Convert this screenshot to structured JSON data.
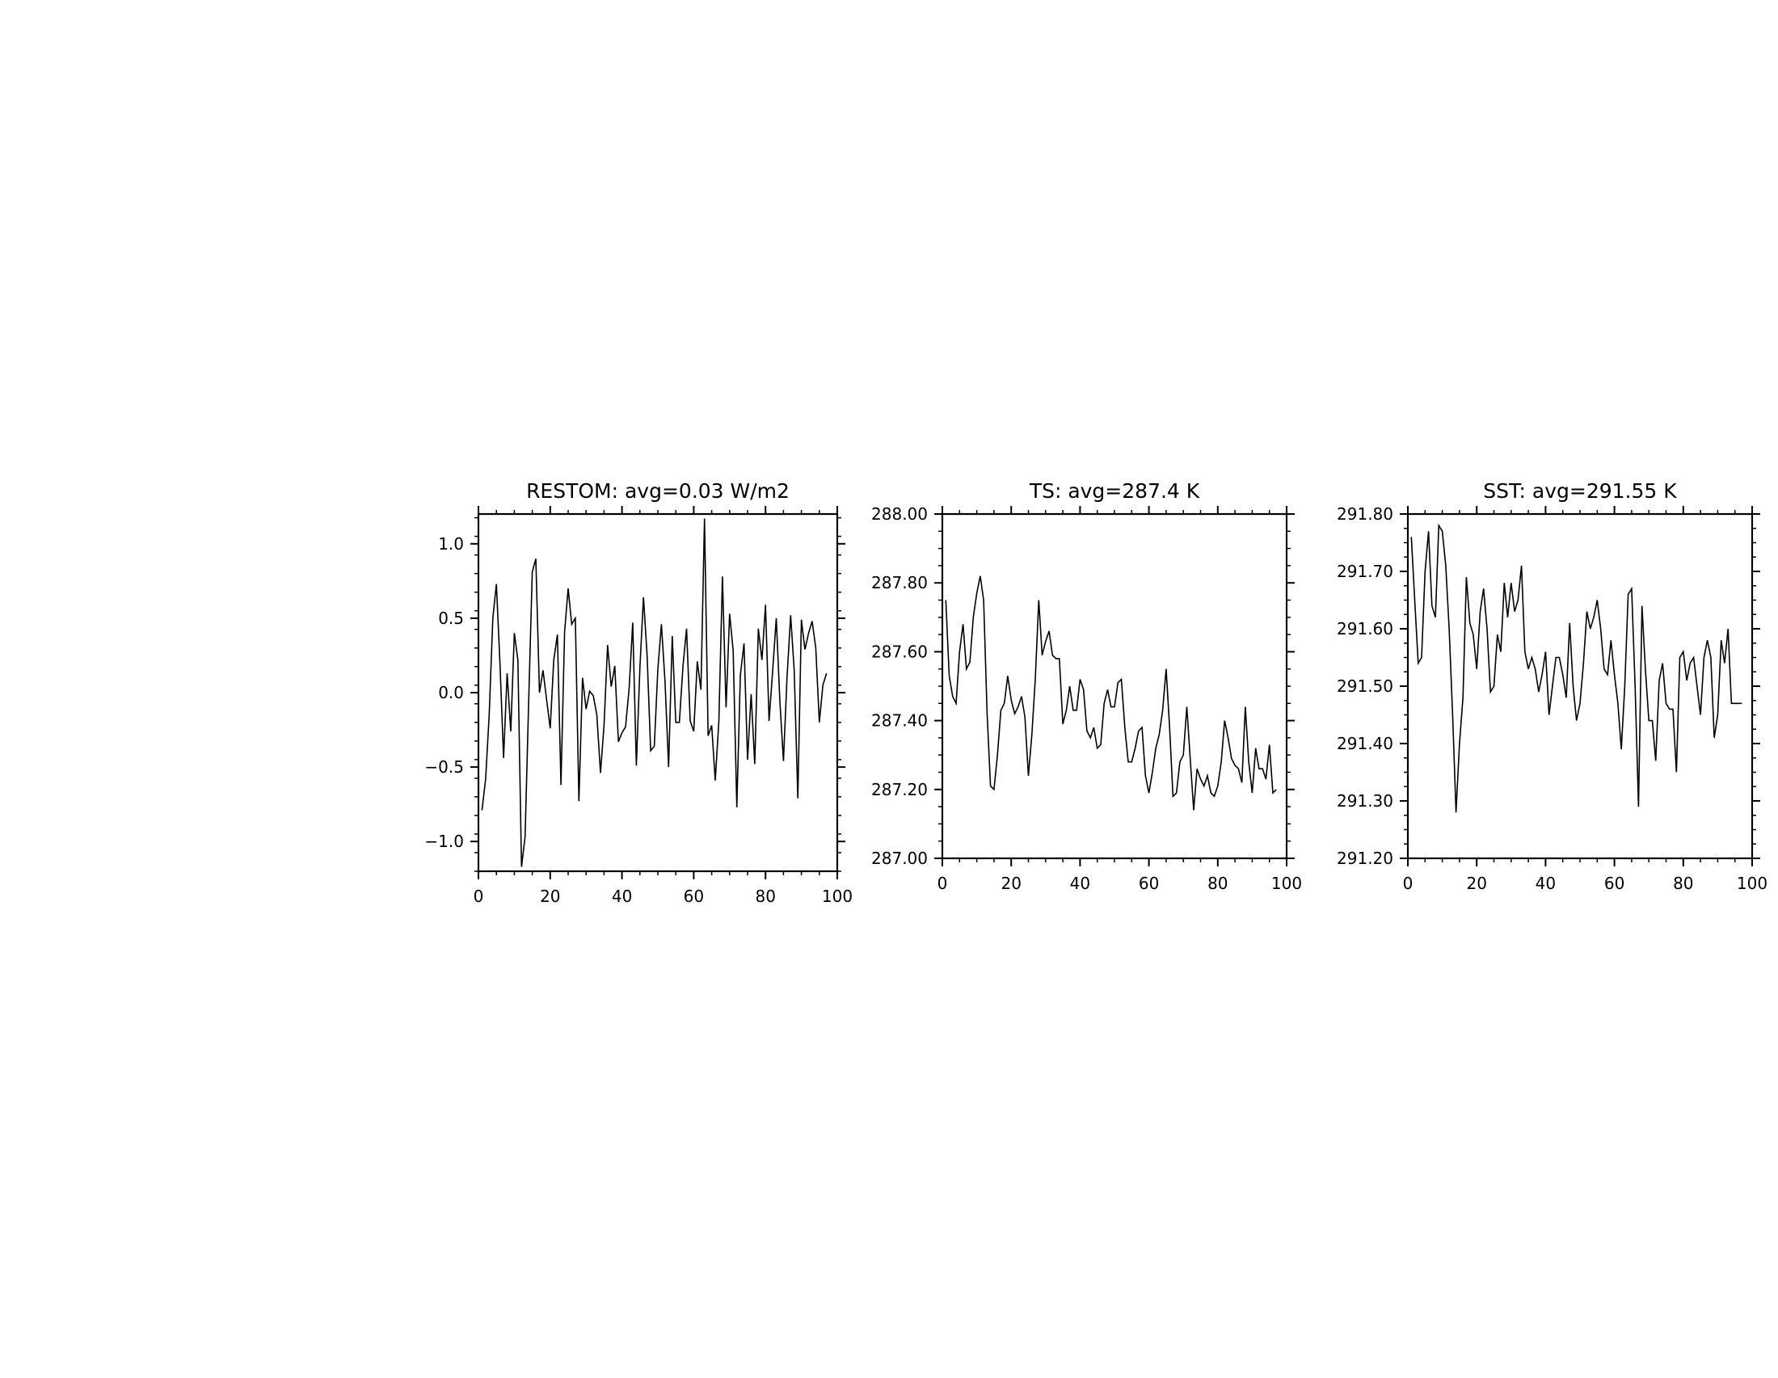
{
  "chart_data": [
    {
      "type": "line",
      "title": "RESTOM: avg=0.03 W/m2",
      "xlabel": "",
      "ylabel": "",
      "xlim": [
        0,
        100
      ],
      "ylim": [
        -1.2,
        1.2
      ],
      "xticks": [
        0,
        20,
        40,
        60,
        80,
        100
      ],
      "xtick_labels": [
        "0",
        "20",
        "40",
        "60",
        "80",
        "100"
      ],
      "yticks": [
        -1.0,
        -0.5,
        0.0,
        0.5,
        1.0
      ],
      "ytick_labels": [
        "−1.0",
        "−0.5",
        "0.0",
        "0.5",
        "1.0"
      ],
      "grid": false,
      "series": [
        {
          "x": [
            1,
            2,
            3,
            4,
            5,
            6,
            7,
            8,
            9,
            10,
            11,
            12,
            13,
            14,
            15,
            16,
            17,
            18,
            19,
            20,
            21,
            22,
            23,
            24,
            25,
            26,
            27,
            28,
            29,
            30,
            31,
            32,
            33,
            34,
            35,
            36,
            37,
            38,
            39,
            40,
            41,
            42,
            43,
            44,
            45,
            46,
            47,
            48,
            49,
            50,
            51,
            52,
            53,
            54,
            55,
            56,
            57,
            58,
            59,
            60,
            61,
            62,
            63,
            64,
            65,
            66,
            67,
            68,
            69,
            70,
            71,
            72,
            73,
            74,
            75,
            76,
            77,
            78,
            79,
            80,
            81,
            82,
            83,
            84,
            85,
            86,
            87,
            88,
            89,
            90,
            91,
            92,
            93,
            94,
            95,
            96,
            97
          ],
          "values": [
            -0.79,
            -0.58,
            -0.15,
            0.5,
            0.73,
            0.2,
            -0.44,
            0.13,
            -0.26,
            0.4,
            0.22,
            -1.17,
            -0.97,
            -0.05,
            0.81,
            0.9,
            0.0,
            0.15,
            -0.05,
            -0.24,
            0.22,
            0.39,
            -0.62,
            0.41,
            0.7,
            0.46,
            0.5,
            -0.73,
            0.1,
            -0.11,
            0.01,
            -0.02,
            -0.15,
            -0.54,
            -0.22,
            0.32,
            0.04,
            0.18,
            -0.33,
            -0.27,
            -0.23,
            0.03,
            0.47,
            -0.49,
            0.17,
            0.64,
            0.25,
            -0.39,
            -0.36,
            0.16,
            0.46,
            0.07,
            -0.5,
            0.38,
            -0.2,
            -0.2,
            0.18,
            0.43,
            -0.19,
            -0.26,
            0.21,
            0.02,
            1.17,
            -0.29,
            -0.22,
            -0.59,
            -0.19,
            0.78,
            -0.1,
            0.53,
            0.28,
            -0.77,
            0.12,
            0.33,
            -0.45,
            -0.01,
            -0.48,
            0.43,
            0.22,
            0.59,
            -0.19,
            0.15,
            0.5,
            -0.06,
            -0.46,
            0.1,
            0.52,
            0.15,
            -0.71,
            0.49,
            0.29,
            0.4,
            0.48,
            0.3,
            -0.2,
            0.05,
            0.13
          ]
        }
      ]
    },
    {
      "type": "line",
      "title": "TS: avg=287.4 K",
      "xlabel": "",
      "ylabel": "",
      "xlim": [
        0,
        100
      ],
      "ylim": [
        287.0,
        288.0
      ],
      "xticks": [
        0,
        20,
        40,
        60,
        80,
        100
      ],
      "xtick_labels": [
        "0",
        "20",
        "40",
        "60",
        "80",
        "100"
      ],
      "yticks": [
        287.0,
        287.2,
        287.4,
        287.6,
        287.8,
        288.0
      ],
      "ytick_labels": [
        "287.00",
        "287.20",
        "287.40",
        "287.60",
        "287.80",
        "288.00"
      ],
      "grid": false,
      "series": [
        {
          "x": [
            1,
            2,
            3,
            4,
            5,
            6,
            7,
            8,
            9,
            10,
            11,
            12,
            13,
            14,
            15,
            16,
            17,
            18,
            19,
            20,
            21,
            22,
            23,
            24,
            25,
            26,
            27,
            28,
            29,
            30,
            31,
            32,
            33,
            34,
            35,
            36,
            37,
            38,
            39,
            40,
            41,
            42,
            43,
            44,
            45,
            46,
            47,
            48,
            49,
            50,
            51,
            52,
            53,
            54,
            55,
            56,
            57,
            58,
            59,
            60,
            61,
            62,
            63,
            64,
            65,
            66,
            67,
            68,
            69,
            70,
            71,
            72,
            73,
            74,
            75,
            76,
            77,
            78,
            79,
            80,
            81,
            82,
            83,
            84,
            85,
            86,
            87,
            88,
            89,
            90,
            91,
            92,
            93,
            94,
            95,
            96,
            97
          ],
          "values": [
            287.75,
            287.53,
            287.47,
            287.45,
            287.6,
            287.68,
            287.55,
            287.57,
            287.7,
            287.77,
            287.82,
            287.75,
            287.42,
            287.21,
            287.2,
            287.3,
            287.43,
            287.45,
            287.53,
            287.46,
            287.42,
            287.44,
            287.47,
            287.41,
            287.24,
            287.36,
            287.52,
            287.75,
            287.59,
            287.63,
            287.66,
            287.59,
            287.58,
            287.58,
            287.39,
            287.43,
            287.5,
            287.43,
            287.43,
            287.52,
            287.49,
            287.37,
            287.35,
            287.38,
            287.32,
            287.33,
            287.45,
            287.49,
            287.44,
            287.44,
            287.51,
            287.52,
            287.38,
            287.28,
            287.28,
            287.32,
            287.37,
            287.38,
            287.24,
            287.19,
            287.25,
            287.32,
            287.36,
            287.43,
            287.55,
            287.38,
            287.18,
            287.19,
            287.28,
            287.3,
            287.44,
            287.29,
            287.14,
            287.26,
            287.23,
            287.21,
            287.24,
            287.19,
            287.18,
            287.21,
            287.28,
            287.4,
            287.35,
            287.29,
            287.27,
            287.26,
            287.22,
            287.44,
            287.28,
            287.19,
            287.32,
            287.26,
            287.26,
            287.23,
            287.33,
            287.19,
            287.2
          ]
        }
      ]
    },
    {
      "type": "line",
      "title": "SST: avg=291.55 K",
      "xlabel": "",
      "ylabel": "",
      "xlim": [
        0,
        100
      ],
      "ylim": [
        291.2,
        291.8
      ],
      "xticks": [
        0,
        20,
        40,
        60,
        80,
        100
      ],
      "xtick_labels": [
        "0",
        "20",
        "40",
        "60",
        "80",
        "100"
      ],
      "yticks": [
        291.2,
        291.3,
        291.4,
        291.5,
        291.6,
        291.7,
        291.8
      ],
      "ytick_labels": [
        "291.20",
        "291.30",
        "291.40",
        "291.50",
        "291.60",
        "291.70",
        "291.80"
      ],
      "grid": false,
      "series": [
        {
          "x": [
            1,
            2,
            3,
            4,
            5,
            6,
            7,
            8,
            9,
            10,
            11,
            12,
            13,
            14,
            15,
            16,
            17,
            18,
            19,
            20,
            21,
            22,
            23,
            24,
            25,
            26,
            27,
            28,
            29,
            30,
            31,
            32,
            33,
            34,
            35,
            36,
            37,
            38,
            39,
            40,
            41,
            42,
            43,
            44,
            45,
            46,
            47,
            48,
            49,
            50,
            51,
            52,
            53,
            54,
            55,
            56,
            57,
            58,
            59,
            60,
            61,
            62,
            63,
            64,
            65,
            66,
            67,
            68,
            69,
            70,
            71,
            72,
            73,
            74,
            75,
            76,
            77,
            78,
            79,
            80,
            81,
            82,
            83,
            84,
            85,
            86,
            87,
            88,
            89,
            90,
            91,
            92,
            93,
            94,
            95,
            96,
            97
          ],
          "values": [
            291.76,
            291.65,
            291.54,
            291.55,
            291.7,
            291.77,
            291.64,
            291.62,
            291.78,
            291.77,
            291.71,
            291.6,
            291.45,
            291.28,
            291.4,
            291.48,
            291.69,
            291.61,
            291.59,
            291.53,
            291.63,
            291.67,
            291.6,
            291.49,
            291.5,
            291.59,
            291.56,
            291.68,
            291.62,
            291.68,
            291.63,
            291.65,
            291.71,
            291.56,
            291.53,
            291.55,
            291.53,
            291.49,
            291.52,
            291.56,
            291.45,
            291.5,
            291.55,
            291.55,
            291.52,
            291.48,
            291.61,
            291.5,
            291.44,
            291.47,
            291.54,
            291.63,
            291.6,
            291.62,
            291.65,
            291.6,
            291.53,
            291.52,
            291.58,
            291.52,
            291.47,
            291.39,
            291.5,
            291.66,
            291.67,
            291.5,
            291.29,
            291.64,
            291.53,
            291.44,
            291.44,
            291.37,
            291.51,
            291.54,
            291.47,
            291.46,
            291.46,
            291.35,
            291.55,
            291.56,
            291.51,
            291.54,
            291.55,
            291.5,
            291.45,
            291.55,
            291.58,
            291.55,
            291.41,
            291.45,
            291.58,
            291.54,
            291.6,
            291.47,
            291.47,
            291.47,
            291.47
          ]
        }
      ]
    }
  ]
}
